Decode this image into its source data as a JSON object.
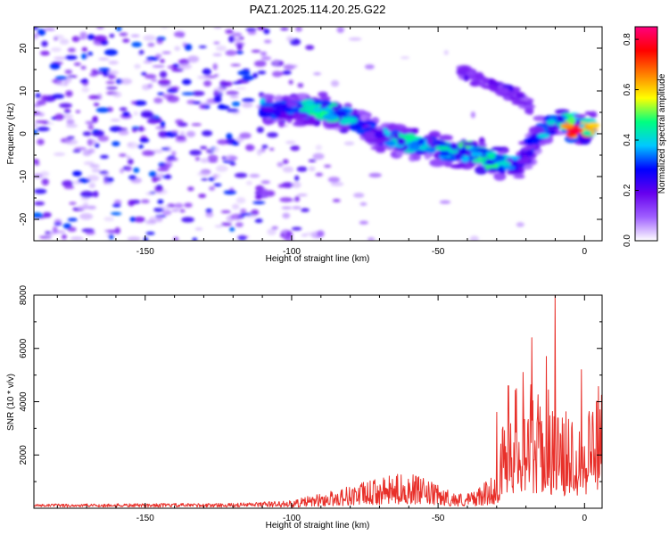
{
  "chart_data": [
    {
      "type": "heatmap",
      "title": "PAZ1.2025.114.20.25.G22",
      "xlabel": "Height of straight line (km)",
      "ylabel": "Frequency (Hz)",
      "xlim": [
        -188,
        6
      ],
      "ylim": [
        -25,
        25
      ],
      "x_ticks": [
        -150,
        -100,
        -50,
        0
      ],
      "y_ticks": [
        -20,
        -10,
        0,
        10,
        20
      ],
      "colorbar": {
        "label": "Normalized spectral amplitude",
        "range": [
          0.0,
          0.85
        ],
        "ticks": [
          0.0,
          0.2,
          0.4,
          0.6,
          0.8
        ],
        "colors": [
          "#ffffff",
          "#9f5fff",
          "#6600ee",
          "#0000ff",
          "#00c8ff",
          "#00ff80",
          "#ffff00",
          "#ff8000",
          "#ff0000",
          "#ff007f"
        ]
      },
      "ridge": [
        {
          "x": -110,
          "y": 6,
          "a": 0.35
        },
        {
          "x": -100,
          "y": 5.5,
          "a": 0.3
        },
        {
          "x": -90,
          "y": 6,
          "a": 0.45
        },
        {
          "x": -80,
          "y": 3.5,
          "a": 0.4
        },
        {
          "x": -75,
          "y": 1,
          "a": 0.3
        },
        {
          "x": -70,
          "y": -0.5,
          "a": 0.3
        },
        {
          "x": -65,
          "y": -1.5,
          "a": 0.4
        },
        {
          "x": -58,
          "y": -2.5,
          "a": 0.4
        },
        {
          "x": -52,
          "y": -3,
          "a": 0.35
        },
        {
          "x": -45,
          "y": -4.5,
          "a": 0.4
        },
        {
          "x": -38,
          "y": -4,
          "a": 0.45
        },
        {
          "x": -30,
          "y": -7,
          "a": 0.45
        },
        {
          "x": -22,
          "y": -7.5,
          "a": 0.25
        },
        {
          "x": -15,
          "y": 1,
          "a": 0.3
        },
        {
          "x": -8,
          "y": 3,
          "a": 0.4
        },
        {
          "x": -3,
          "y": 1,
          "a": 0.75
        },
        {
          "x": 3,
          "y": 2,
          "a": 0.55
        }
      ],
      "branch": [
        {
          "x": -42,
          "y": 14.5,
          "a": 0.2
        },
        {
          "x": -35,
          "y": 12,
          "a": 0.15
        },
        {
          "x": -25,
          "y": 9.5,
          "a": 0.2
        },
        {
          "x": -20,
          "y": 7,
          "a": 0.15
        },
        {
          "x": -18,
          "y": 5,
          "a": 0.2
        }
      ]
    },
    {
      "type": "line",
      "title": "",
      "xlabel": "Height of straight line (km)",
      "ylabel": "SNR (10 * v/v)",
      "xlim": [
        -188,
        6
      ],
      "ylim": [
        0,
        8000
      ],
      "x_ticks": [
        -150,
        -100,
        -50,
        0
      ],
      "y_ticks": [
        2000,
        4000,
        6000,
        8000
      ],
      "color": "#e8302a",
      "envelope_x": [
        -188,
        -120,
        -100,
        -90,
        -80,
        -70,
        -60,
        -50,
        -45,
        -40,
        -35,
        -30,
        -28,
        -25,
        -22,
        -18,
        -15,
        -12,
        -10,
        -8,
        -5,
        -2,
        0,
        2,
        6
      ],
      "envelope_y": [
        120,
        150,
        250,
        450,
        700,
        900,
        1100,
        700,
        500,
        450,
        700,
        1100,
        2500,
        3600,
        3800,
        3800,
        3300,
        3600,
        3200,
        2700,
        3100,
        3200,
        3100,
        3500,
        3800
      ],
      "peaks": [
        {
          "x": -30,
          "y": 3600
        },
        {
          "x": -26,
          "y": 4600
        },
        {
          "x": -21,
          "y": 5100
        },
        {
          "x": -18,
          "y": 6400
        },
        {
          "x": -13,
          "y": 5700
        },
        {
          "x": -10,
          "y": 8000
        },
        {
          "x": -1,
          "y": 5200
        },
        {
          "x": 4,
          "y": 4000
        }
      ]
    }
  ]
}
